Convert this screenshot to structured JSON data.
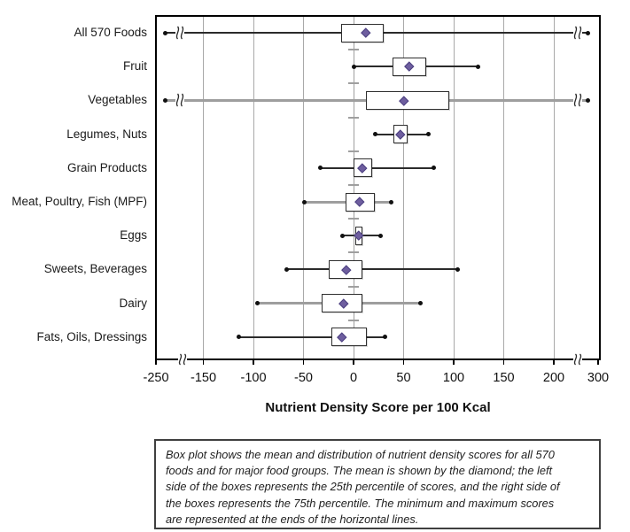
{
  "chart_data": {
    "type": "boxplot",
    "orientation": "horizontal",
    "xlabel": "Nutrient Density Score per 100 Kcal",
    "x_axis": {
      "ticks": [
        {
          "value": -250,
          "label": "-250"
        },
        {
          "value": -150,
          "label": "-150"
        },
        {
          "value": -100,
          "label": "-100"
        },
        {
          "value": -50,
          "label": "-50"
        },
        {
          "value": 0,
          "label": "0"
        },
        {
          "value": 50,
          "label": "50"
        },
        {
          "value": 100,
          "label": "100"
        },
        {
          "value": 150,
          "label": "150"
        },
        {
          "value": 200,
          "label": "200"
        },
        {
          "value": 300,
          "label": "300"
        }
      ],
      "gridlines": [
        -150,
        -100,
        -50,
        50,
        100,
        150,
        200
      ],
      "zero_line": 0,
      "range_shown": [
        -250,
        300
      ],
      "axis_breaks": [
        {
          "between": [
            -250,
            -150
          ]
        },
        {
          "between": [
            200,
            300
          ]
        }
      ]
    },
    "groups": [
      {
        "label": "All 570 Foods",
        "q1": -12,
        "mean": 12,
        "q3": 30,
        "min_off_scale": true,
        "max_off_scale": true,
        "whisker_style": "thin"
      },
      {
        "label": "Fruit",
        "min": 0,
        "q1": 39,
        "mean": 56,
        "q3": 73,
        "max": 124,
        "whisker_style": "thin"
      },
      {
        "label": "Vegetables",
        "q1": 12,
        "mean": 50,
        "q3": 96,
        "min_off_scale": true,
        "max_off_scale": true,
        "whisker_style": "thick-gray"
      },
      {
        "label": "Legumes, Nuts",
        "min": 22,
        "q1": 40,
        "mean": 47,
        "q3": 54,
        "max": 75,
        "whisker_style": "thin"
      },
      {
        "label": "Grain Products",
        "min": -33,
        "q1": 0,
        "mean": 9,
        "q3": 19,
        "max": 80,
        "whisker_style": "thin"
      },
      {
        "label": "Meat, Poultry, Fish (MPF)",
        "min": -49,
        "q1": -8,
        "mean": 6,
        "q3": 21,
        "max": 38,
        "whisker_style": "thick-gray"
      },
      {
        "label": "Eggs",
        "min": -11,
        "q1": 2,
        "mean": 5,
        "q3": 9,
        "max": 27,
        "whisker_style": "thin"
      },
      {
        "label": "Sweets, Beverages",
        "min": -67,
        "q1": -25,
        "mean": -7,
        "q3": 9,
        "max": 104,
        "whisker_style": "thin"
      },
      {
        "label": "Dairy",
        "min": -96,
        "q1": -32,
        "mean": -10,
        "q3": 9,
        "max": 67,
        "whisker_style": "thick-gray"
      },
      {
        "label": "Fats, Oils, Dressings",
        "min": -115,
        "q1": -22,
        "mean": -12,
        "q3": 13,
        "max": 31,
        "whisker_style": "thin"
      }
    ]
  },
  "caption": {
    "lines": [
      "Box plot shows the mean and distribution of nutrient density scores for all 570",
      "foods and for major food groups. The mean is shown by the diamond; the left",
      "side of the boxes represents the 25th percentile of scores, and the right side of",
      "the boxes represents the 75th percentile. The minimum and maximum scores",
      "are represented at the ends of the horizontal lines."
    ]
  },
  "colors": {
    "mean_diamond": "#6e5e9f",
    "mean_diamond_border": "#4c4080",
    "box_fill": "#ffffff",
    "box_border": "#2f2f2f",
    "whisker_thin": "#2b2b2b",
    "whisker_thick_gray": "#9e9e9e",
    "endpoint_dot": "#111111",
    "gridline": "#a9a9a9",
    "zero_line": "#9f9f9f",
    "plot_border": "#000000",
    "text": "#1a1a1a"
  }
}
